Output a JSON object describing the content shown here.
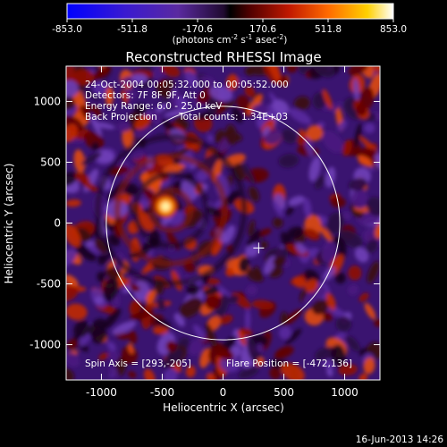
{
  "colorbar": {
    "tick_labels": [
      "-853.0",
      "-511.8",
      "-170.6",
      "170.6",
      "511.8",
      "853.0"
    ],
    "units_main": "(photons cm",
    "units_sup1": "-2",
    "units_mid": " s",
    "units_sup2": "-1",
    "units_tail": " asec",
    "units_sup3": "-2",
    "units_close": ")",
    "range": [
      -853.0,
      853.0
    ]
  },
  "chart_data": {
    "type": "heatmap",
    "title": "Reconstructed RHESSI Image",
    "xlabel": "Heliocentric X (arcsec)",
    "ylabel": "Heliocentric Y (arcsec)",
    "xlim": [
      -1290,
      1290
    ],
    "ylim": [
      -1290,
      1290
    ],
    "xticks": [
      "-1000",
      "-500",
      "0",
      "500",
      "1000"
    ],
    "xtick_values": [
      -1000,
      -500,
      0,
      500,
      1000
    ],
    "yticks": [
      "1000",
      "500",
      "0",
      "-500",
      "-1000"
    ],
    "ytick_values": [
      1000,
      500,
      0,
      -500,
      -1000
    ],
    "info_lines": [
      "24-Oct-2004 00:05:32.000 to 00:05:52.000",
      "Detectors: 7F 8F 9F, Att 0",
      "Energy Range: 6.0 - 25.0 keV"
    ],
    "method": "Back Projection",
    "total_counts": "Total counts: 1.34E+03",
    "spin_axis": "Spin Axis = [293,-205]",
    "flare_position": "Flare Position = [-472,136]",
    "solar_disk": {
      "center": [
        0,
        0
      ],
      "radius_arcsec": 960
    },
    "bright_source": {
      "x": -472,
      "y": 136
    },
    "crosshair": {
      "x": 293,
      "y": -205
    },
    "colormap": [
      "#0000ff",
      "#4030c0",
      "#6030a0",
      "#401060",
      "#000000",
      "#600000",
      "#c01000",
      "#ff6000",
      "#ffd000",
      "#ffffff"
    ],
    "footer": "16-Jun-2013 14:26"
  }
}
